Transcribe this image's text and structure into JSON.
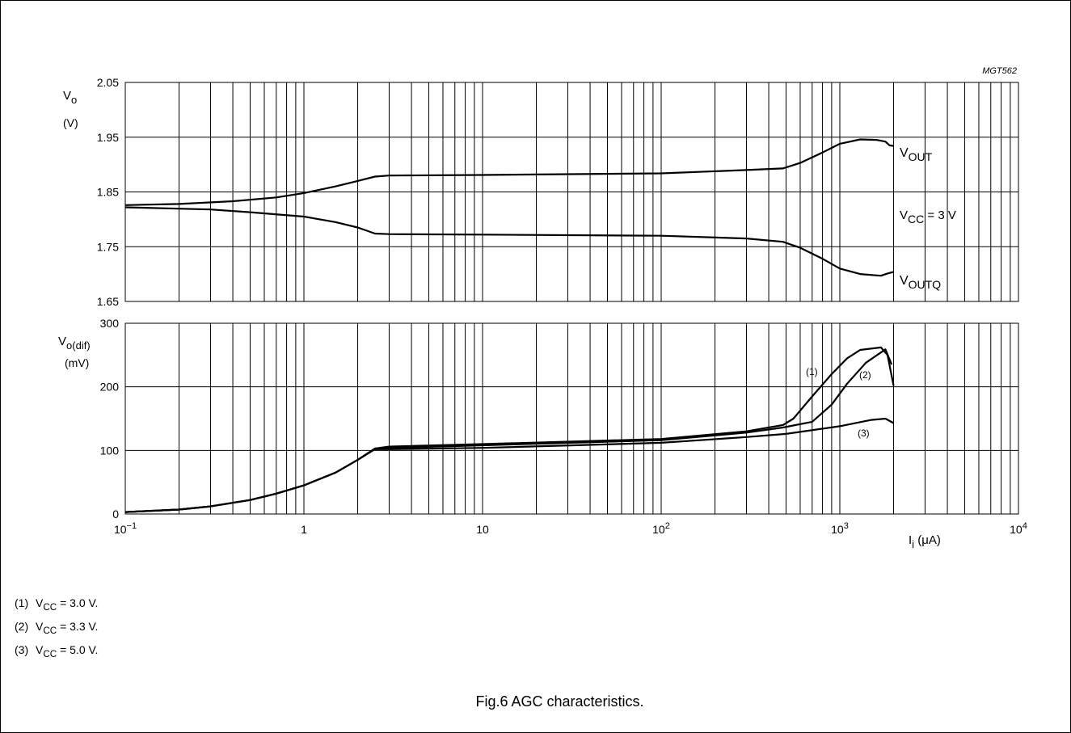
{
  "figure_code": "MGT562",
  "caption": "Fig.6 AGC characteristics.",
  "footnotes": [
    {
      "num": "(1)",
      "pre": "V",
      "sub": "CC",
      "post": " = 3.0 V."
    },
    {
      "num": "(2)",
      "pre": "V",
      "sub": "CC",
      "post": " = 3.3 V."
    },
    {
      "num": "(3)",
      "pre": "V",
      "sub": "CC",
      "post": " = 5.0 V."
    }
  ],
  "chart_data": [
    {
      "type": "line",
      "xscale": "log",
      "xlim": [
        0.1,
        10000
      ],
      "ylim": [
        1.65,
        2.05
      ],
      "y_ticks": [
        "1.65",
        "1.75",
        "1.85",
        "1.95",
        "2.05"
      ],
      "y_tick_values": [
        1.65,
        1.75,
        1.85,
        1.95,
        2.05
      ],
      "ylabel": {
        "main": "V",
        "sub": "o",
        "unit": "(V)"
      },
      "grid": true,
      "annotation": {
        "main": "V",
        "sub": "CC",
        "rest": " = 3 V"
      },
      "series": [
        {
          "name": "VOUT",
          "label_main": "V",
          "label_sub": "OUT",
          "points": [
            [
              0.1,
              1.826
            ],
            [
              0.2,
              1.828
            ],
            [
              0.4,
              1.833
            ],
            [
              0.7,
              1.84
            ],
            [
              1,
              1.848
            ],
            [
              1.5,
              1.86
            ],
            [
              2,
              1.87
            ],
            [
              2.5,
              1.878
            ],
            [
              3,
              1.88
            ],
            [
              10,
              1.881
            ],
            [
              100,
              1.884
            ],
            [
              300,
              1.89
            ],
            [
              480,
              1.893
            ],
            [
              600,
              1.903
            ],
            [
              800,
              1.922
            ],
            [
              1000,
              1.938
            ],
            [
              1300,
              1.946
            ],
            [
              1600,
              1.945
            ],
            [
              1800,
              1.942
            ],
            [
              1900,
              1.935
            ],
            [
              2000,
              1.934
            ]
          ]
        },
        {
          "name": "VOUTQ",
          "label_main": "V",
          "label_sub": "OUTQ",
          "points": [
            [
              0.1,
              1.822
            ],
            [
              0.3,
              1.818
            ],
            [
              0.5,
              1.813
            ],
            [
              1,
              1.805
            ],
            [
              1.5,
              1.795
            ],
            [
              2,
              1.785
            ],
            [
              2.5,
              1.774
            ],
            [
              3,
              1.773
            ],
            [
              10,
              1.772
            ],
            [
              100,
              1.77
            ],
            [
              300,
              1.765
            ],
            [
              480,
              1.759
            ],
            [
              600,
              1.748
            ],
            [
              800,
              1.728
            ],
            [
              1000,
              1.71
            ],
            [
              1300,
              1.7
            ],
            [
              1700,
              1.697
            ],
            [
              1850,
              1.701
            ],
            [
              2000,
              1.704
            ]
          ]
        }
      ]
    },
    {
      "type": "line",
      "xscale": "log",
      "xlim": [
        0.1,
        10000
      ],
      "ylim": [
        0,
        300
      ],
      "y_ticks": [
        "0",
        "100",
        "200",
        "300"
      ],
      "y_tick_values": [
        0,
        100,
        200,
        300
      ],
      "x_ticks": [
        {
          "value": 0.1,
          "base": "10",
          "sup": "−1"
        },
        {
          "value": 1,
          "base": "1",
          "sup": ""
        },
        {
          "value": 10,
          "base": "10",
          "sup": ""
        },
        {
          "value": 100,
          "base": "10",
          "sup": "2"
        },
        {
          "value": 1000,
          "base": "10",
          "sup": "3"
        },
        {
          "value": 10000,
          "base": "10",
          "sup": "4"
        }
      ],
      "ylabel": {
        "main": "V",
        "sub": "o(dif)",
        "unit": "(mV)"
      },
      "xlabel": {
        "main": "I",
        "sub": "i",
        "unit": " (μA)"
      },
      "grid": true,
      "series": [
        {
          "name": "(1)",
          "points": [
            [
              0.1,
              3
            ],
            [
              0.2,
              7
            ],
            [
              0.3,
              12
            ],
            [
              0.5,
              22
            ],
            [
              0.7,
              32
            ],
            [
              1,
              45
            ],
            [
              1.5,
              65
            ],
            [
              2,
              85
            ],
            [
              2.5,
              103
            ],
            [
              3,
              106
            ],
            [
              10,
              110
            ],
            [
              100,
              118
            ],
            [
              300,
              130
            ],
            [
              480,
              140
            ],
            [
              550,
              150
            ],
            [
              700,
              185
            ],
            [
              900,
              220
            ],
            [
              1100,
              245
            ],
            [
              1300,
              258
            ],
            [
              1700,
              262
            ],
            [
              1850,
              250
            ],
            [
              2000,
              202
            ]
          ]
        },
        {
          "name": "(2)",
          "points": [
            [
              0.1,
              3
            ],
            [
              0.2,
              7
            ],
            [
              0.3,
              12
            ],
            [
              0.5,
              22
            ],
            [
              0.7,
              32
            ],
            [
              1,
              45
            ],
            [
              1.5,
              65
            ],
            [
              2,
              85
            ],
            [
              2.5,
              103
            ],
            [
              3,
              104
            ],
            [
              10,
              108
            ],
            [
              100,
              116
            ],
            [
              300,
              128
            ],
            [
              480,
              136
            ],
            [
              700,
              145
            ],
            [
              900,
              172
            ],
            [
              1100,
              205
            ],
            [
              1400,
              238
            ],
            [
              1800,
              259
            ],
            [
              1950,
              235
            ]
          ]
        },
        {
          "name": "(3)",
          "points": [
            [
              0.1,
              3
            ],
            [
              0.2,
              7
            ],
            [
              0.3,
              12
            ],
            [
              0.5,
              22
            ],
            [
              0.7,
              32
            ],
            [
              1,
              45
            ],
            [
              1.5,
              65
            ],
            [
              2,
              85
            ],
            [
              2.5,
              102
            ],
            [
              3,
              102
            ],
            [
              10,
              104
            ],
            [
              100,
              112
            ],
            [
              300,
              121
            ],
            [
              500,
              126
            ],
            [
              1000,
              138
            ],
            [
              1500,
              148
            ],
            [
              1800,
              150
            ],
            [
              2000,
              143
            ]
          ]
        }
      ]
    }
  ]
}
